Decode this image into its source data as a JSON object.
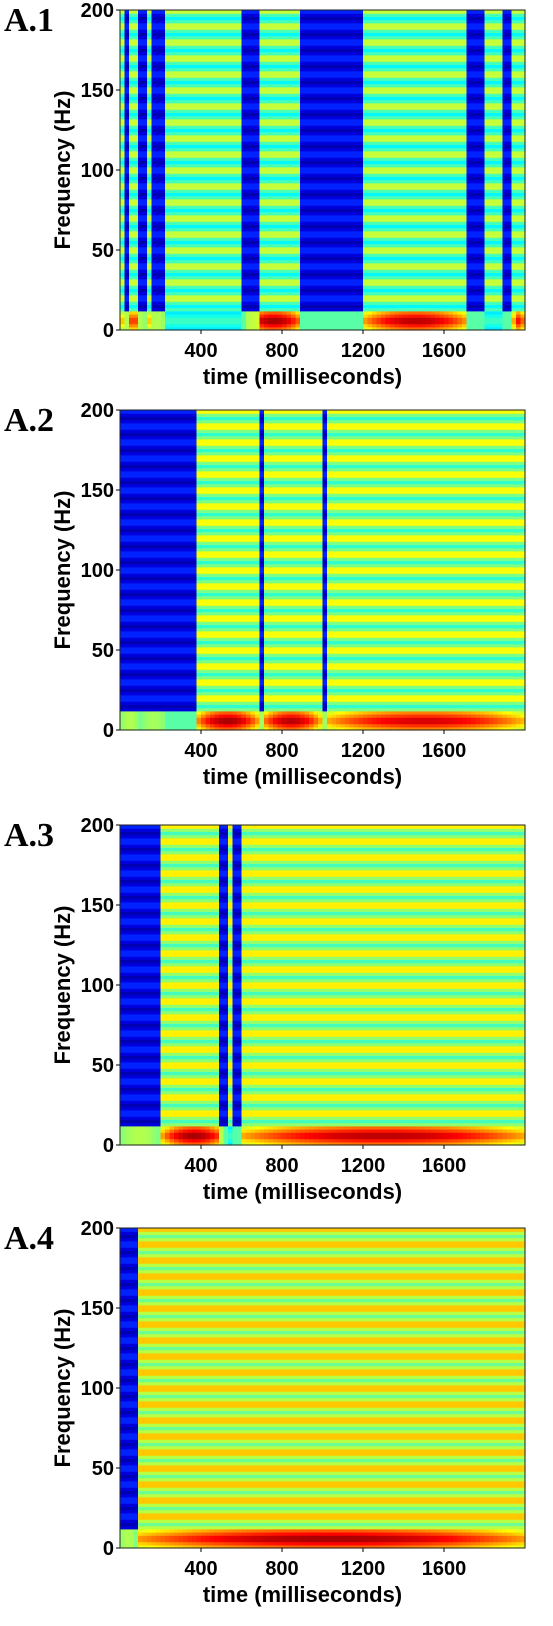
{
  "chart_data": [
    {
      "type": "heatmap",
      "panel_label": "A.1",
      "xlabel": "time (milliseconds)",
      "ylabel": "Frequency (Hz)",
      "xlim": [
        0,
        2000
      ],
      "ylim": [
        0,
        200
      ],
      "x_ticks": [
        400,
        800,
        1200,
        1600
      ],
      "y_ticks": [
        0,
        50,
        100,
        150,
        200
      ],
      "colormap": "jet",
      "low_power_intervals_ms": [
        [
          30,
          50
        ],
        [
          100,
          130
        ],
        [
          165,
          230
        ],
        [
          600,
          680
        ],
        [
          895,
          1200
        ],
        [
          1720,
          1790
        ],
        [
          1900,
          1940
        ]
      ],
      "low_freq_power_blobs": [
        {
          "t_start": 0,
          "t_end": 130,
          "peak": 0.85
        },
        {
          "t_start": 130,
          "t_end": 230,
          "peak": 0.8
        },
        {
          "t_start": 620,
          "t_end": 900,
          "peak": 1.0
        },
        {
          "t_start": 1200,
          "t_end": 1720,
          "peak": 0.98
        },
        {
          "t_start": 1940,
          "t_end": 2000,
          "peak": 0.9
        }
      ],
      "baseline_level": 0.55
    },
    {
      "type": "heatmap",
      "panel_label": "A.2",
      "xlabel": "time (milliseconds)",
      "ylabel": "Frequency (Hz)",
      "xlim": [
        0,
        2000
      ],
      "ylim": [
        0,
        200
      ],
      "x_ticks": [
        400,
        800,
        1200,
        1600
      ],
      "y_ticks": [
        0,
        50,
        100,
        150,
        200
      ],
      "colormap": "jet",
      "low_power_intervals_ms": [
        [
          0,
          230
        ],
        [
          230,
          370
        ],
        [
          680,
          720
        ],
        [
          990,
          1030
        ]
      ],
      "low_freq_power_blobs": [
        {
          "t_start": 0,
          "t_end": 100,
          "peak": 0.8
        },
        {
          "t_start": 100,
          "t_end": 230,
          "peak": 0.75
        },
        {
          "t_start": 380,
          "t_end": 680,
          "peak": 1.0
        },
        {
          "t_start": 700,
          "t_end": 990,
          "peak": 0.98
        },
        {
          "t_start": 1000,
          "t_end": 2000,
          "peak": 0.95
        }
      ],
      "baseline_level": 0.6
    },
    {
      "type": "heatmap",
      "panel_label": "A.3",
      "xlabel": "time (milliseconds)",
      "ylabel": "Frequency (Hz)",
      "xlim": [
        0,
        2000
      ],
      "ylim": [
        0,
        200
      ],
      "x_ticks": [
        400,
        800,
        1200,
        1600
      ],
      "y_ticks": [
        0,
        50,
        100,
        150,
        200
      ],
      "colormap": "jet",
      "low_power_intervals_ms": [
        [
          0,
          190
        ],
        [
          500,
          530
        ],
        [
          560,
          600
        ]
      ],
      "low_freq_power_blobs": [
        {
          "t_start": 0,
          "t_end": 190,
          "peak": 0.8
        },
        {
          "t_start": 210,
          "t_end": 520,
          "peak": 1.0
        },
        {
          "t_start": 600,
          "t_end": 2000,
          "peak": 0.98
        }
      ],
      "baseline_level": 0.62
    },
    {
      "type": "heatmap",
      "panel_label": "A.4",
      "xlabel": "time (milliseconds)",
      "ylabel": "Frequency (Hz)",
      "xlim": [
        0,
        2000
      ],
      "ylim": [
        0,
        200
      ],
      "x_ticks": [
        400,
        800,
        1200,
        1600
      ],
      "y_ticks": [
        0,
        50,
        100,
        150,
        200
      ],
      "colormap": "jet",
      "low_power_intervals_ms": [
        [
          0,
          80
        ]
      ],
      "low_freq_power_blobs": [
        {
          "t_start": 0,
          "t_end": 80,
          "peak": 0.8
        },
        {
          "t_start": 80,
          "t_end": 2000,
          "peak": 1.0
        }
      ],
      "baseline_level": 0.66
    }
  ]
}
